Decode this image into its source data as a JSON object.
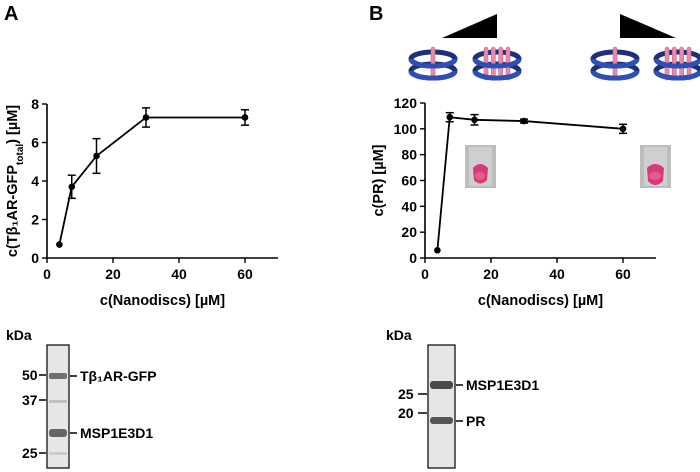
{
  "panel_a": {
    "letter": "A",
    "gel": {
      "unit_label": "kDa",
      "markers": [
        "50",
        "37",
        "25"
      ],
      "bands": [
        "Tβ₁AR-GFP",
        "MSP1E3D1"
      ]
    }
  },
  "panel_b": {
    "letter": "B",
    "gel": {
      "unit_label": "kDa",
      "markers": [
        "25",
        "20"
      ],
      "bands": [
        "MSP1E3D1",
        "PR"
      ]
    }
  },
  "chart_data": [
    {
      "type": "line",
      "panel": "A",
      "title": "",
      "xlabel": "c(Nanodiscs) [µM]",
      "ylabel": "c(Tβ₁AR-GFPtotal) [µM]",
      "ylabel_parts": {
        "main": "c(Tβ₁AR-GFP",
        "subscript": "total",
        "tail": ") [µM]"
      },
      "xlim": [
        0,
        70
      ],
      "ylim": [
        0,
        8
      ],
      "xticks": [
        0,
        20,
        40,
        60
      ],
      "yticks": [
        0,
        2,
        4,
        6,
        8
      ],
      "grid": false,
      "series": [
        {
          "x": [
            3.75,
            7.5,
            15,
            30,
            60
          ],
          "y": [
            0.7,
            3.7,
            5.3,
            7.3,
            7.3
          ],
          "err": [
            0,
            0.6,
            0.9,
            0.5,
            0.4
          ]
        }
      ]
    },
    {
      "type": "line",
      "panel": "B",
      "title": "",
      "xlabel": "c(Nanodiscs) [µM]",
      "ylabel": "c(PR) [µM]",
      "xlim": [
        0,
        70
      ],
      "ylim": [
        0,
        120
      ],
      "xticks": [
        0,
        20,
        40,
        60
      ],
      "yticks": [
        0,
        20,
        40,
        60,
        80,
        100,
        120
      ],
      "grid": false,
      "series": [
        {
          "x": [
            3.75,
            7.5,
            15,
            30,
            60
          ],
          "y": [
            6,
            109,
            107,
            106,
            100
          ],
          "err": [
            0,
            3.5,
            4,
            1.5,
            3.5
          ]
        }
      ]
    }
  ],
  "colors": {
    "disc_ring": "#2f4fb8",
    "disc_ring_dark": "#1c2f7a",
    "protein": "#e88aa8",
    "tube_pink": "#d63a79",
    "tube_bg": "#b8b8b8",
    "gel_band": "#555555"
  }
}
